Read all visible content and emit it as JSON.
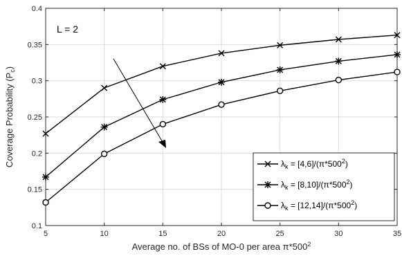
{
  "chart_data": {
    "type": "line",
    "x": [
      5,
      10,
      15,
      20,
      25,
      30,
      35
    ],
    "xlim": [
      5,
      35
    ],
    "ylim": [
      0.1,
      0.4
    ],
    "xticks": [
      "5",
      "10",
      "15",
      "20",
      "25",
      "30",
      "35"
    ],
    "yticks": [
      "0.1",
      "0.15",
      "0.2",
      "0.25",
      "0.3",
      "0.35",
      "0.4"
    ],
    "xlabel": {
      "pre": "Average no. of BSs of MO-0 per area ",
      "pi": "π",
      "post": "*500",
      "sup": "2"
    },
    "ylabel": {
      "pre": "Coverage Probability (P",
      "sub": "c",
      "post": ")"
    },
    "grid": true,
    "legend_position": "bottom-right",
    "annotations": {
      "text": "L = 2"
    },
    "series": [
      {
        "marker": "x",
        "values": [
          0.227,
          0.29,
          0.32,
          0.338,
          0.349,
          0.357,
          0.363
        ],
        "legend": {
          "sym": "λ",
          "sub": "k",
          "mid": " = [4,6]/(",
          "pi": "π",
          "post": "*500",
          "sup": "2",
          "end": ")"
        }
      },
      {
        "marker": "asterisk",
        "values": [
          0.167,
          0.236,
          0.274,
          0.298,
          0.315,
          0.327,
          0.336
        ],
        "legend": {
          "sym": "λ",
          "sub": "k",
          "mid": " = [8,10]/(",
          "pi": "π",
          "post": "*500",
          "sup": "2",
          "end": ")"
        }
      },
      {
        "marker": "circle",
        "values": [
          0.132,
          0.199,
          0.24,
          0.267,
          0.286,
          0.301,
          0.312
        ],
        "legend": {
          "sym": "λ",
          "sub": "k",
          "mid": " = [12,14]/(",
          "pi": "π",
          "post": "*500",
          "sup": "2",
          "end": ")"
        }
      }
    ]
  }
}
